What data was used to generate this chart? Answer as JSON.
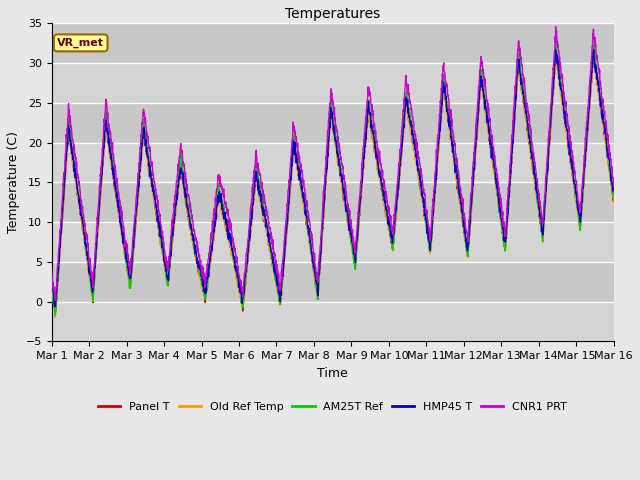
{
  "title": "Temperatures",
  "xlabel": "Time",
  "ylabel": "Temperature (C)",
  "ylim": [
    -5,
    35
  ],
  "series": {
    "Panel T": {
      "color": "#cc0000"
    },
    "Old Ref Temp": {
      "color": "#ff9900"
    },
    "AM25T Ref": {
      "color": "#00cc00"
    },
    "HMP45 T": {
      "color": "#0000cc"
    },
    "CNR1 PRT": {
      "color": "#cc00cc"
    }
  },
  "annotation_text": "VR_met",
  "background_color": "#e8e8e8",
  "plot_bg_color": "#dcdcdc",
  "grid_color": "#ffffff",
  "alt_band_color": "#cccccc",
  "tick_labels": [
    "Mar 1",
    "Mar 2",
    "Mar 3",
    "Mar 4",
    "Mar 5",
    "Mar 6",
    "Mar 7",
    "Mar 8",
    "Mar 9",
    "Mar 10",
    "Mar 11",
    "Mar 12",
    "Mar 13",
    "Mar 14",
    "Mar 15",
    "Mar 16"
  ],
  "n_days": 15,
  "pts_per_day": 144,
  "figsize": [
    6.4,
    4.8
  ],
  "dpi": 100
}
